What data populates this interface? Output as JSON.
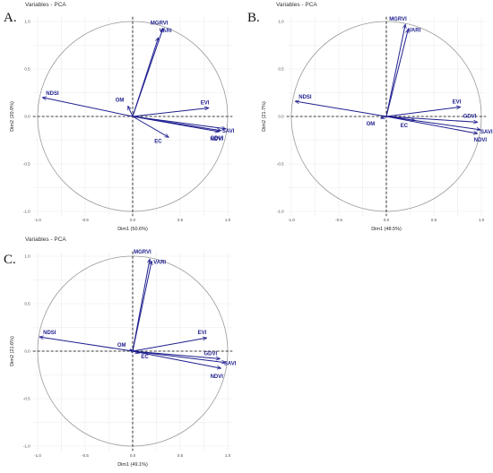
{
  "chart_data": [
    {
      "type": "scatter",
      "panel_label": "A.",
      "title": "Variables - PCA",
      "xlabel": "Dim1 (50.6%)",
      "ylabel": "Dim2 (20.9%)",
      "xlim": [
        -1.05,
        1.05
      ],
      "ylim": [
        -1.05,
        1.05
      ],
      "ticks": [
        -1.0,
        -0.5,
        0.0,
        0.5,
        1.0
      ],
      "tick_labels": [
        "-1.0",
        "-0.5",
        "0.0",
        "0.5",
        "1.0"
      ],
      "grid": true,
      "unit_circle": true,
      "vectors": [
        {
          "name": "MGRVI",
          "x": 0.32,
          "y": 0.93
        },
        {
          "name": "VARI",
          "x": 0.27,
          "y": 0.83
        },
        {
          "name": "NDSI",
          "x": -0.95,
          "y": 0.2
        },
        {
          "name": "OM",
          "x": -0.05,
          "y": 0.11
        },
        {
          "name": "EVI",
          "x": 0.8,
          "y": 0.09
        },
        {
          "name": "SAVI",
          "x": 0.98,
          "y": -0.13
        },
        {
          "name": "GDVI",
          "x": 0.93,
          "y": -0.15
        },
        {
          "name": "NDVI",
          "x": 0.91,
          "y": -0.16
        },
        {
          "name": "EC",
          "x": 0.38,
          "y": -0.22
        }
      ]
    },
    {
      "type": "scatter",
      "panel_label": "B.",
      "title": "Variables - PCA",
      "xlabel": "Dim1 (48.5%)",
      "ylabel": "Dim2 (21.7%)",
      "xlim": [
        -1.05,
        1.05
      ],
      "ylim": [
        -1.05,
        1.05
      ],
      "ticks": [
        -1.0,
        -0.5,
        0.0,
        0.5,
        1.0
      ],
      "tick_labels": [
        "-1.0",
        "-0.5",
        "0.0",
        "0.5",
        "1.0"
      ],
      "grid": true,
      "unit_circle": true,
      "vectors": [
        {
          "name": "MGRVI",
          "x": 0.2,
          "y": 0.97
        },
        {
          "name": "VARI",
          "x": 0.23,
          "y": 0.92
        },
        {
          "name": "NDSI",
          "x": -0.96,
          "y": 0.16
        },
        {
          "name": "OM",
          "x": -0.06,
          "y": -0.02
        },
        {
          "name": "EVI",
          "x": 0.78,
          "y": 0.1
        },
        {
          "name": "GDVI",
          "x": 0.96,
          "y": -0.06
        },
        {
          "name": "SAVI",
          "x": 0.99,
          "y": -0.14
        },
        {
          "name": "NDVI",
          "x": 0.96,
          "y": -0.18
        },
        {
          "name": "EC",
          "x": 0.3,
          "y": -0.04
        }
      ]
    },
    {
      "type": "scatter",
      "panel_label": "C.",
      "title": "Variables - PCA",
      "xlabel": "Dim1 (49.1%)",
      "ylabel": "Dim2 (21.6%)",
      "xlim": [
        -1.05,
        1.05
      ],
      "ylim": [
        -1.05,
        1.05
      ],
      "ticks": [
        -1.0,
        -0.5,
        0.0,
        0.5,
        1.0
      ],
      "tick_labels": [
        "-1.0",
        "-0.5",
        "0.0",
        "0.5",
        "1.0"
      ],
      "grid": true,
      "unit_circle": true,
      "vectors": [
        {
          "name": "MGRVI",
          "x": 0.18,
          "y": 0.97
        },
        {
          "name": "VARI",
          "x": 0.2,
          "y": 0.95
        },
        {
          "name": "NDSI",
          "x": -0.98,
          "y": 0.15
        },
        {
          "name": "OM",
          "x": -0.03,
          "y": 0.02
        },
        {
          "name": "EVI",
          "x": 0.78,
          "y": 0.14
        },
        {
          "name": "EC",
          "x": 0.07,
          "y": -0.02
        },
        {
          "name": "GDVI",
          "x": 0.92,
          "y": -0.08
        },
        {
          "name": "SAVI",
          "x": 0.98,
          "y": -0.12
        },
        {
          "name": "NDVI",
          "x": 0.93,
          "y": -0.18
        }
      ]
    }
  ]
}
